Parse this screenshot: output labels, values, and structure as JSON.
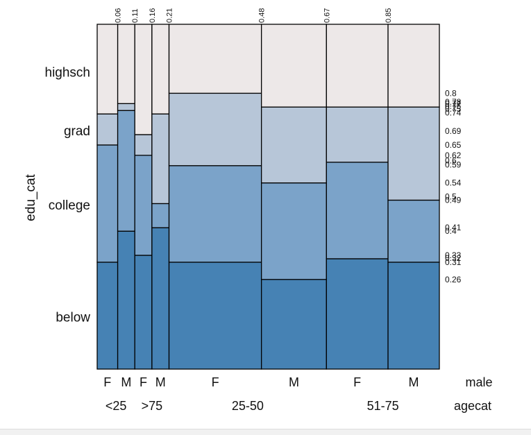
{
  "chart_data": {
    "type": "mosaic",
    "ylabel": "edu_cat",
    "y_categories": [
      "below",
      "college",
      "grad",
      "highsch"
    ],
    "x_row1_label": "male",
    "x_row2_label": "agecat",
    "top_cumulative_labels": [
      "0.06",
      "0.11",
      "0.16",
      "0.21",
      "0.48",
      "0.67",
      "0.85"
    ],
    "colors": {
      "below": "#4682b4",
      "college": "#7ba3c9",
      "grad": "#b7c6d8",
      "highsch": "#ede8e8",
      "outline": "#000000"
    },
    "columns": [
      {
        "age": "<25",
        "sex": "F",
        "start": 0.0,
        "end": 0.06,
        "breaks": [
          0.31,
          0.65,
          0.74
        ]
      },
      {
        "age": "<25",
        "sex": "M",
        "start": 0.06,
        "end": 0.11,
        "breaks": [
          0.4,
          0.75,
          0.77
        ]
      },
      {
        "age": ">75",
        "sex": "F",
        "start": 0.11,
        "end": 0.16,
        "breaks": [
          0.33,
          0.62,
          0.68
        ]
      },
      {
        "age": ">75",
        "sex": "M",
        "start": 0.16,
        "end": 0.21,
        "breaks": [
          0.41,
          0.48,
          0.74
        ]
      },
      {
        "age": "25-50",
        "sex": "F",
        "start": 0.21,
        "end": 0.48,
        "breaks": [
          0.31,
          0.59,
          0.8
        ]
      },
      {
        "age": "25-50",
        "sex": "M",
        "start": 0.48,
        "end": 0.67,
        "breaks": [
          0.26,
          0.54,
          0.76
        ]
      },
      {
        "age": "51-75",
        "sex": "F",
        "start": 0.67,
        "end": 0.85,
        "breaks": [
          0.32,
          0.6,
          0.76
        ]
      },
      {
        "age": "51-75",
        "sex": "M",
        "start": 0.85,
        "end": 1.0,
        "breaks": [
          0.31,
          0.49,
          0.76
        ]
      }
    ],
    "age_groups": [
      {
        "label": "<25",
        "start": 0.0,
        "end": 0.11
      },
      {
        "label": ">75",
        "start": 0.11,
        "end": 0.21
      },
      {
        "label": "25-50",
        "start": 0.21,
        "end": 0.67
      },
      {
        "label": "51-75",
        "start": 0.67,
        "end": 1.0
      }
    ],
    "right_labels": [
      {
        "text": "0.8",
        "value": 0.8
      },
      {
        "text": "0.78",
        "value": 0.775
      },
      {
        "text": "0.77",
        "value": 0.77
      },
      {
        "text": "0.76",
        "value": 0.763
      },
      {
        "text": "0.75",
        "value": 0.755
      },
      {
        "text": "0.74",
        "value": 0.743
      },
      {
        "text": "0.69",
        "value": 0.69
      },
      {
        "text": "0.65",
        "value": 0.65
      },
      {
        "text": "0.62",
        "value": 0.62
      },
      {
        "text": "0.6",
        "value": 0.605
      },
      {
        "text": "0.59",
        "value": 0.593
      },
      {
        "text": "0.54",
        "value": 0.54
      },
      {
        "text": "0.5",
        "value": 0.5
      },
      {
        "text": "0.49",
        "value": 0.49
      },
      {
        "text": "0.41",
        "value": 0.41
      },
      {
        "text": "0.4",
        "value": 0.4
      },
      {
        "text": "0.33",
        "value": 0.33
      },
      {
        "text": "0.32",
        "value": 0.322
      },
      {
        "text": "0.31",
        "value": 0.31
      },
      {
        "text": "0.26",
        "value": 0.26
      }
    ]
  }
}
